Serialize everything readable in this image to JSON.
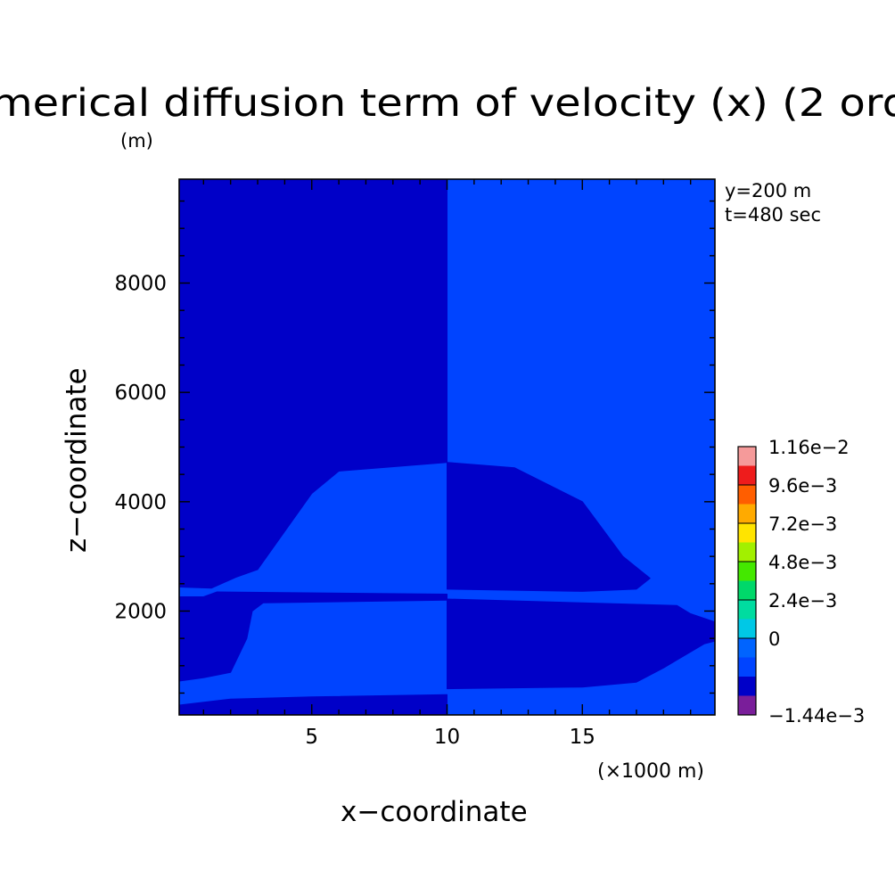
{
  "chart_data": {
    "type": "heatmap",
    "title": "merical diffusion term of velocity (x) (2 ord",
    "xlabel": "x−coordinate",
    "ylabel": "z−coordinate",
    "x_unit": "(×1000 m)",
    "y_unit": "(m)",
    "annotations": [
      "y=200 m",
      "t=480 sec"
    ],
    "xlim": [
      0.1,
      19.9
    ],
    "ylim": [
      100,
      9900
    ],
    "x_ticks": [
      5,
      10,
      15
    ],
    "x_tick_labels": [
      "5",
      "10",
      "15"
    ],
    "y_ticks": [
      2000,
      4000,
      6000,
      8000
    ],
    "y_tick_labels": [
      "2000",
      "4000",
      "6000",
      "8000"
    ],
    "colorbar": {
      "levels": [
        "1.16e−2",
        "9.6e−3",
        "7.2e−3",
        "4.8e−3",
        "2.4e−3",
        "0",
        "−1.44e−3"
      ],
      "colors": [
        "#f59a9a",
        "#ee1c1c",
        "#ff5e00",
        "#ffaa00",
        "#ffe400",
        "#a2f000",
        "#44e800",
        "#00d86a",
        "#00dca0",
        "#00c8e6",
        "#0064ff",
        "#0044ff",
        "#0000c8",
        "#7a1e9a"
      ]
    },
    "regions": [
      {
        "name": "dark",
        "color": "#0000c8",
        "level_range": "−1.44e−3 to 0",
        "points": [
          [
            0.1,
            100
          ],
          [
            10,
            100
          ],
          [
            10,
            470
          ],
          [
            5,
            430
          ],
          [
            2,
            390
          ],
          [
            0.1,
            280
          ]
        ]
      },
      {
        "name": "dark",
        "color": "#0000c8",
        "level_range": "−1.44e−3 to 0",
        "points": [
          [
            0.1,
            720
          ],
          [
            1,
            780
          ],
          [
            2,
            880
          ],
          [
            2.6,
            1500
          ],
          [
            2.8,
            2000
          ],
          [
            3.2,
            2150
          ],
          [
            10,
            2200
          ],
          [
            10,
            2310
          ],
          [
            1.5,
            2350
          ],
          [
            1,
            2260
          ],
          [
            0.1,
            2260
          ]
        ]
      },
      {
        "name": "dark",
        "color": "#0000c8",
        "level_range": "−1.44e−3 to 0",
        "points": [
          [
            0.1,
            2440
          ],
          [
            1.3,
            2420
          ],
          [
            2.2,
            2620
          ],
          [
            3,
            2760
          ],
          [
            5,
            4150
          ],
          [
            6,
            4560
          ],
          [
            10,
            4720
          ],
          [
            10,
            9900
          ],
          [
            0.1,
            9900
          ]
        ]
      },
      {
        "name": "dark",
        "color": "#0000c8",
        "level_range": "−1.44e−3 to 0",
        "points": [
          [
            10,
            580
          ],
          [
            15,
            610
          ],
          [
            17,
            700
          ],
          [
            18,
            960
          ],
          [
            19.5,
            1400
          ],
          [
            19.9,
            1450
          ],
          [
            19.9,
            1800
          ],
          [
            19,
            1950
          ],
          [
            18.5,
            2100
          ],
          [
            10,
            2220
          ],
          [
            10,
            580
          ]
        ]
      },
      {
        "name": "dark",
        "color": "#0000c8",
        "level_range": "−1.44e−3 to 0",
        "points": [
          [
            10,
            2400
          ],
          [
            15,
            2360
          ],
          [
            17,
            2400
          ],
          [
            17.5,
            2600
          ],
          [
            16.5,
            3000
          ],
          [
            15,
            4000
          ],
          [
            12.5,
            4620
          ],
          [
            10,
            4720
          ]
        ]
      }
    ],
    "background_color": "#0044ff"
  }
}
